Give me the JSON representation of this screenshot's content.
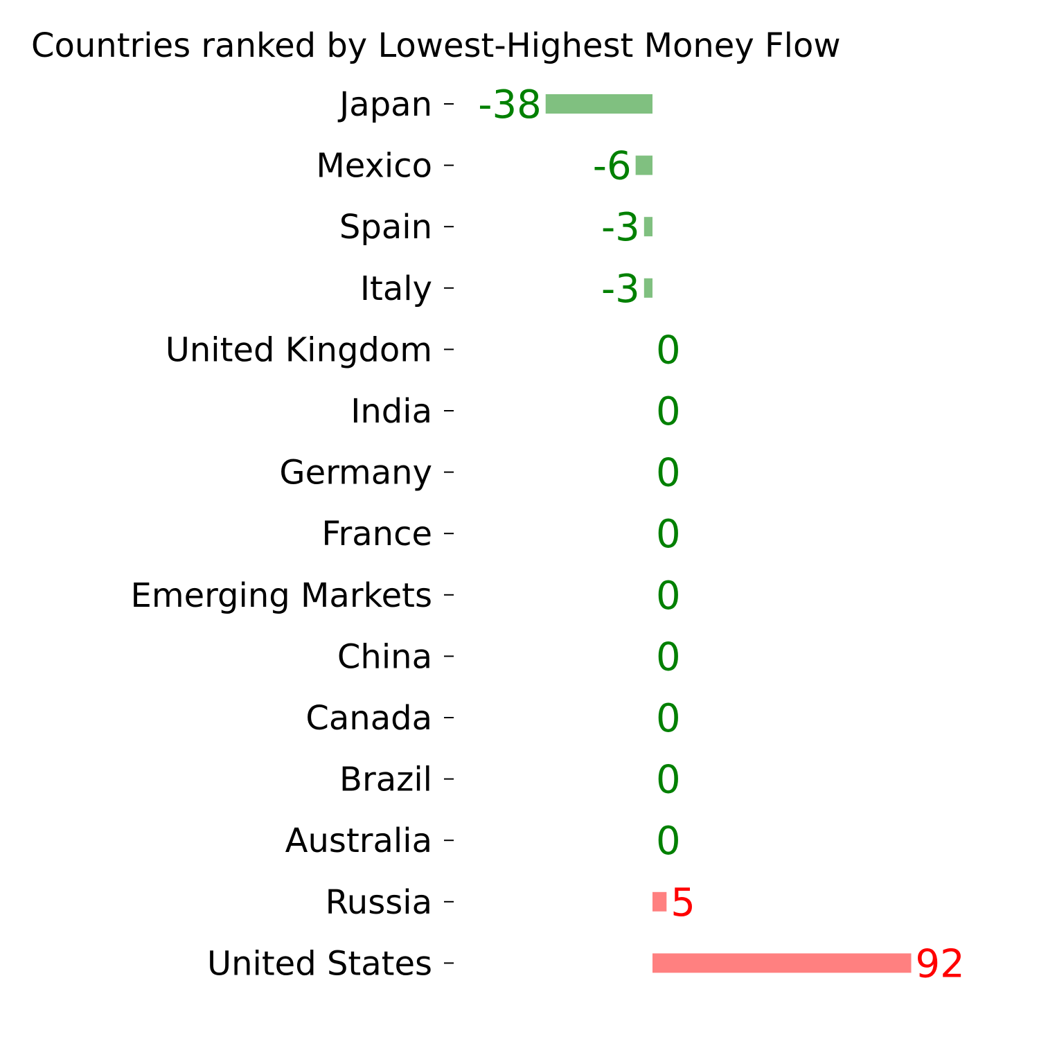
{
  "chart_data": {
    "type": "bar",
    "orientation": "horizontal",
    "title": "Countries ranked by Lowest-Highest Money Flow",
    "xlabel": "",
    "ylabel": "",
    "grid": false,
    "legend": "none",
    "xlim": [
      -77,
      108
    ],
    "categories": [
      "Japan",
      "Mexico",
      "Spain",
      "Italy",
      "United Kingdom",
      "India",
      "Germany",
      "France",
      "Emerging Markets",
      "China",
      "Canada",
      "Brazil",
      "Australia",
      "Russia",
      "United States"
    ],
    "values": [
      -38,
      -6,
      -3,
      -3,
      0,
      0,
      0,
      0,
      0,
      0,
      0,
      0,
      0,
      5,
      92
    ],
    "value_labels": [
      "-38",
      "-6",
      "-3",
      "-3",
      "0",
      "0",
      "0",
      "0",
      "0",
      "0",
      "0",
      "0",
      "0",
      "5",
      "92"
    ],
    "colors": {
      "negative_bar": "#80c080",
      "negative_text": "#008000",
      "positive_bar": "#ff8080",
      "positive_text": "#ff0000",
      "zero_text": "#008000"
    }
  }
}
